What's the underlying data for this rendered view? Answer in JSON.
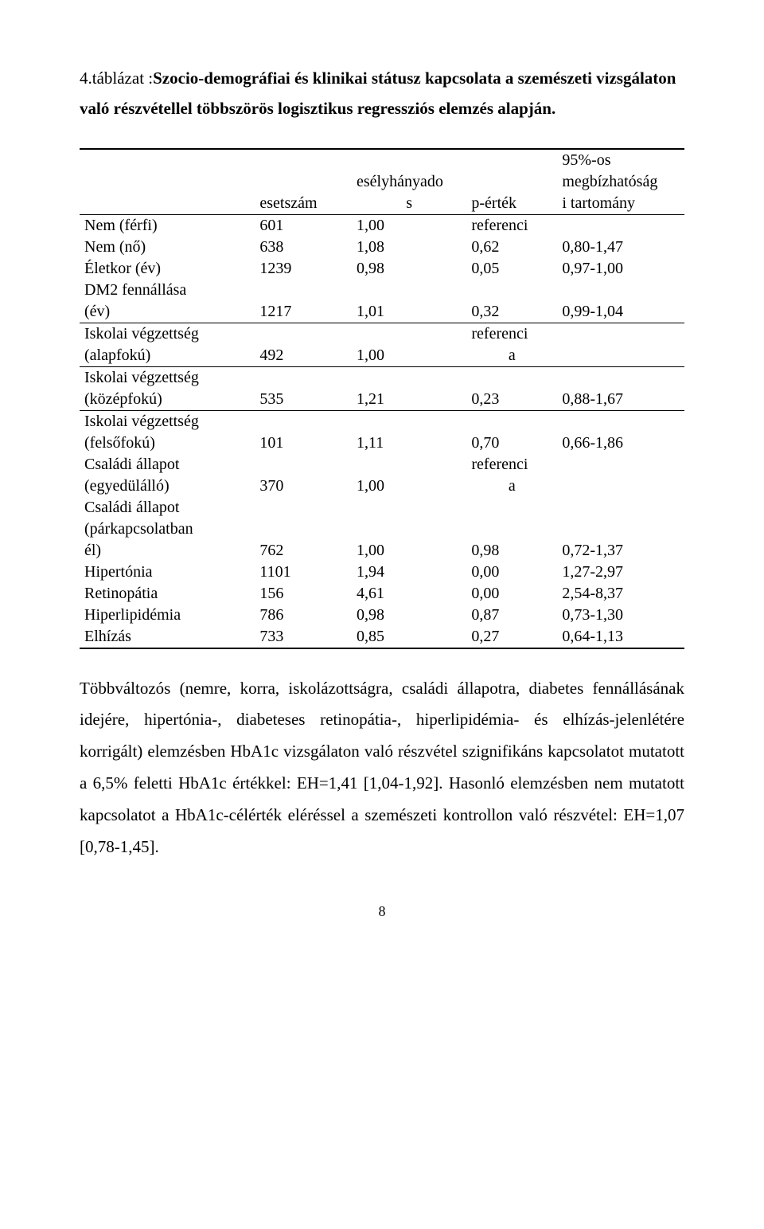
{
  "heading": {
    "line1_prefix": "4.táblázat :",
    "line1_bold": "Szocio"
  },
  "heading_rest_bold": "-demográfiai és klinikai státusz kapcsolata a szemészeti vizsgálaton való részvétellel többszörös logisztikus regressziós elemzés alapján.",
  "table": {
    "head": {
      "c1": "",
      "c2": "esetszám",
      "c3a": "esélyhányado",
      "c3b": "s",
      "c4": "p-érték",
      "c5a": "95%-os",
      "c5b": "megbízhatóság",
      "c5c": "i tartomány"
    },
    "rows_top": [
      {
        "label": "Nem (férfi)",
        "n": "601",
        "or": "1,00",
        "p": "referenci",
        "ci": ""
      },
      {
        "label": "Nem (nő)",
        "n": "638",
        "or": "1,08",
        "p": "0,62",
        "ci": "0,80-1,47"
      },
      {
        "label": "Életkor (év)",
        "n": "1239",
        "or": "0,98",
        "p": "0,05",
        "ci": "0,97-1,00"
      }
    ],
    "dm2": {
      "label_a": "DM2 fennállása",
      "label_b": "(év)",
      "n": "1217",
      "or": "1,01",
      "p": "0,32",
      "ci": "0,99-1,04"
    },
    "edu1": {
      "label_a": "Iskolai végzettség",
      "label_b": "(alapfokú)",
      "n": "492",
      "or": "1,00",
      "p_a": "referenci",
      "p_b": "a",
      "ci": ""
    },
    "edu2": {
      "label_a": "Iskolai végzettség",
      "label_b": "(középfokú)",
      "n": "535",
      "or": "1,21",
      "p": "0,23",
      "ci": "0,88-1,67"
    },
    "edu3": {
      "label_a": "Iskolai végzettség",
      "label_b": "(felsőfokú)",
      "n": "101",
      "or": "1,11",
      "p": "0,70",
      "ci": "0,66-1,86"
    },
    "fam1": {
      "label_a": "Családi állapot",
      "label_b": "(egyedülálló)",
      "n": "370",
      "or": "1,00",
      "p_a": "referenci",
      "p_b": "a",
      "ci": ""
    },
    "fam2": {
      "label_a": "Családi állapot",
      "label_b": "(párkapcsolatban",
      "label_c": "él)",
      "n": "762",
      "or": "1,00",
      "p": "0,98",
      "ci": "0,72-1,37"
    },
    "rows_bottom": [
      {
        "label": "Hipertónia",
        "n": "1101",
        "or": "1,94",
        "p": "0,00",
        "ci": "1,27-2,97"
      },
      {
        "label": "Retinopátia",
        "n": "156",
        "or": "4,61",
        "p": "0,00",
        "ci": "2,54-8,37"
      },
      {
        "label": "Hiperlipidémia",
        "n": "786",
        "or": "0,98",
        "p": "0,87",
        "ci": "0,73-1,30"
      },
      {
        "label": "Elhízás",
        "n": "733",
        "or": "0,85",
        "p": "0,27",
        "ci": "0,64-1,13"
      }
    ]
  },
  "paragraph": "Többváltozós (nemre, korra, iskolázottságra, családi állapotra, diabetes fennállásának idejére, hipertónia-, diabeteses retinopátia-, hiperlipidémia- és elhízás-jelenlétére korrigált) elemzésben HbA1c vizsgálaton való részvétel szignifikáns kapcsolatot mutatott a 6,5% feletti HbA1c értékkel: EH=1,41 [1,04-1,92]. Hasonló elemzésben nem mutatott kapcsolatot a HbA1c-célérték eléréssel a szemészeti kontrollon való részvétel: EH=1,07 [0,78-1,45].",
  "page_number": "8"
}
